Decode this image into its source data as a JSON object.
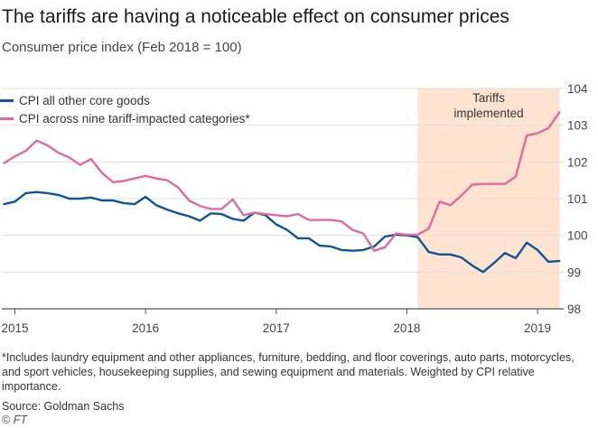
{
  "header": {
    "title": "The tariffs are having a noticeable effect on consumer prices",
    "subtitle": "Consumer price index (Feb 2018 = 100)"
  },
  "legend": {
    "items": [
      {
        "label": "CPI all other core goods",
        "color": "#0f5499"
      },
      {
        "label": "CPI across nine tariff-impacted categories*",
        "color": "#e06b99"
      }
    ]
  },
  "footer": {
    "footnote": "*Includes laundry equipment and other appliances, furniture, bedding, and floor coverings, auto parts, motorcycles, and sport vehicles, housekeeping supplies, and sewing equipment and materials. Weighted by CPI relative importance.",
    "source": "Source: Goldman Sachs",
    "credit": "FT",
    "copyright": "©"
  },
  "chart_data": {
    "type": "line",
    "title": "The tariffs are having a noticeable effect on consumer prices",
    "ylabel": "Consumer price index (Feb 2018 = 100)",
    "x_range": [
      2014.9,
      2019.2
    ],
    "ylim": [
      98,
      104
    ],
    "y_ticks": [
      98,
      99,
      100,
      101,
      102,
      103,
      104
    ],
    "x_ticks": [
      {
        "value": 2015,
        "label": "2015"
      },
      {
        "value": 2016,
        "label": "2016"
      },
      {
        "value": 2017,
        "label": "2017"
      },
      {
        "value": 2018,
        "label": "2018"
      },
      {
        "value": 2019,
        "label": "2019"
      }
    ],
    "grid": true,
    "shaded_region": {
      "from": 2018.083,
      "to": 2019.17,
      "label_line1": "Tariffs",
      "label_line2": "implemented",
      "color": "#fde3d0"
    },
    "series": [
      {
        "name": "CPI all other core goods",
        "color": "#0f5499",
        "x": [
          2014.917,
          2015.0,
          2015.083,
          2015.167,
          2015.25,
          2015.333,
          2015.417,
          2015.5,
          2015.583,
          2015.667,
          2015.75,
          2015.833,
          2015.917,
          2016.0,
          2016.083,
          2016.167,
          2016.25,
          2016.333,
          2016.417,
          2016.5,
          2016.583,
          2016.667,
          2016.75,
          2016.833,
          2016.917,
          2017.0,
          2017.083,
          2017.167,
          2017.25,
          2017.333,
          2017.417,
          2017.5,
          2017.583,
          2017.667,
          2017.75,
          2017.833,
          2017.917,
          2018.0,
          2018.083,
          2018.167,
          2018.25,
          2018.333,
          2018.417,
          2018.5,
          2018.583,
          2018.667,
          2018.75,
          2018.833,
          2018.917,
          2019.0,
          2019.083,
          2019.167
        ],
        "values": [
          100.85,
          100.92,
          101.15,
          101.18,
          101.15,
          101.1,
          101.0,
          101.0,
          101.03,
          100.95,
          100.95,
          100.88,
          100.85,
          101.05,
          100.82,
          100.7,
          100.6,
          100.52,
          100.4,
          100.6,
          100.58,
          100.45,
          100.4,
          100.62,
          100.55,
          100.3,
          100.15,
          99.92,
          99.92,
          99.72,
          99.7,
          99.6,
          99.58,
          99.6,
          99.7,
          99.97,
          100.02,
          100.0,
          99.95,
          99.55,
          99.48,
          99.48,
          99.4,
          99.18,
          99.0,
          99.25,
          99.52,
          99.38,
          99.8,
          99.6,
          99.28,
          99.3
        ]
      },
      {
        "name": "CPI across nine tariff-impacted categories*",
        "color": "#e06b99",
        "x": [
          2014.917,
          2015.0,
          2015.083,
          2015.167,
          2015.25,
          2015.333,
          2015.417,
          2015.5,
          2015.583,
          2015.667,
          2015.75,
          2015.833,
          2015.917,
          2016.0,
          2016.083,
          2016.167,
          2016.25,
          2016.333,
          2016.417,
          2016.5,
          2016.583,
          2016.667,
          2016.75,
          2016.833,
          2016.917,
          2017.0,
          2017.083,
          2017.167,
          2017.25,
          2017.333,
          2017.417,
          2017.5,
          2017.583,
          2017.667,
          2017.75,
          2017.833,
          2017.917,
          2018.0,
          2018.083,
          2018.167,
          2018.25,
          2018.333,
          2018.417,
          2018.5,
          2018.583,
          2018.667,
          2018.75,
          2018.833,
          2018.917,
          2019.0,
          2019.083,
          2019.167
        ],
        "values": [
          101.97,
          102.15,
          102.3,
          102.58,
          102.45,
          102.25,
          102.12,
          101.92,
          102.08,
          101.7,
          101.45,
          101.48,
          101.55,
          101.62,
          101.55,
          101.5,
          101.3,
          100.95,
          100.8,
          100.72,
          100.72,
          100.98,
          100.55,
          100.62,
          100.58,
          100.55,
          100.52,
          100.58,
          100.42,
          100.42,
          100.42,
          100.38,
          100.15,
          100.05,
          99.58,
          99.68,
          100.05,
          100.02,
          100.02,
          100.18,
          100.92,
          100.82,
          101.08,
          101.38,
          101.4,
          101.4,
          101.4,
          101.6,
          102.72,
          102.78,
          102.92,
          103.35
        ]
      }
    ]
  }
}
